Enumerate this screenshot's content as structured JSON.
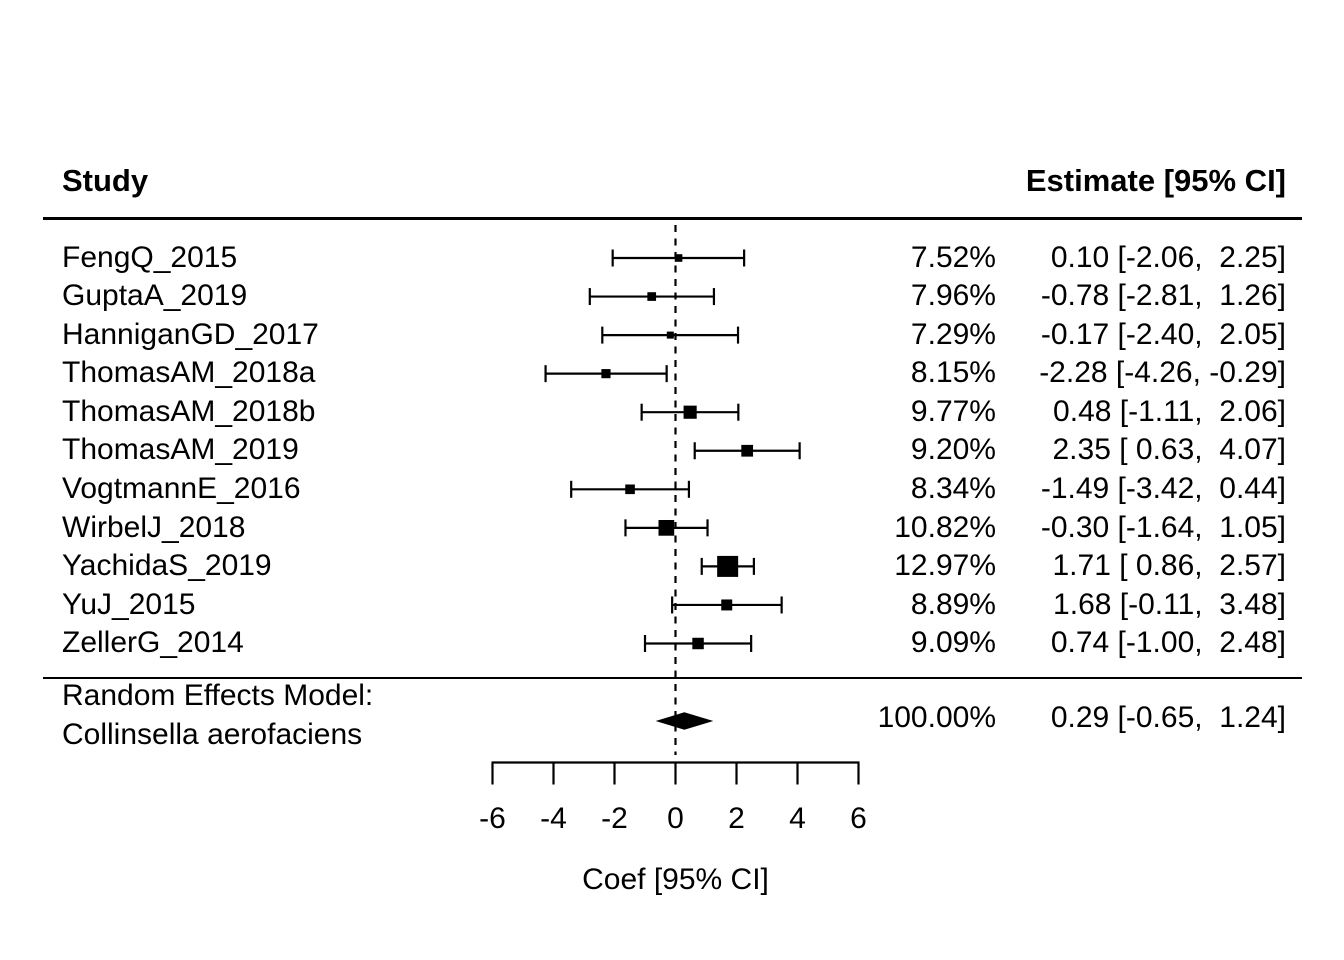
{
  "page": {
    "background": "#ffffff",
    "ink_color": "#000000"
  },
  "header": {
    "study_label": "Study",
    "estimate_label": "Estimate [95% CI]"
  },
  "summary_block": {
    "line1": "Random Effects Model:",
    "line2": "Collinsella aerofaciens",
    "weight_text": "100.00%",
    "estimate_text": "0.29 [-0.65,  1.24]"
  },
  "chart_data": {
    "type": "forest",
    "title": "",
    "x_axis": {
      "label": "Coef [95% CI]",
      "ticks": [
        -6,
        -4,
        -2,
        0,
        2,
        4,
        6
      ],
      "range": [
        -6,
        6
      ]
    },
    "zero_reference_line": 0,
    "studies": [
      {
        "label": "FengQ_2015",
        "weight_pct": 7.52,
        "weight_text": "7.52%",
        "estimate": 0.1,
        "ci_lower": -2.06,
        "ci_upper": 2.25,
        "estimate_text": "0.10 [-2.06,  2.25]"
      },
      {
        "label": "GuptaA_2019",
        "weight_pct": 7.96,
        "weight_text": "7.96%",
        "estimate": -0.78,
        "ci_lower": -2.81,
        "ci_upper": 1.26,
        "estimate_text": "-0.78 [-2.81,  1.26]"
      },
      {
        "label": "HanniganGD_2017",
        "weight_pct": 7.29,
        "weight_text": "7.29%",
        "estimate": -0.17,
        "ci_lower": -2.4,
        "ci_upper": 2.05,
        "estimate_text": "-0.17 [-2.40,  2.05]"
      },
      {
        "label": "ThomasAM_2018a",
        "weight_pct": 8.15,
        "weight_text": "8.15%",
        "estimate": -2.28,
        "ci_lower": -4.26,
        "ci_upper": -0.29,
        "estimate_text": "-2.28 [-4.26, -0.29]"
      },
      {
        "label": "ThomasAM_2018b",
        "weight_pct": 9.77,
        "weight_text": "9.77%",
        "estimate": 0.48,
        "ci_lower": -1.11,
        "ci_upper": 2.06,
        "estimate_text": "0.48 [-1.11,  2.06]"
      },
      {
        "label": "ThomasAM_2019",
        "weight_pct": 9.2,
        "weight_text": "9.20%",
        "estimate": 2.35,
        "ci_lower": 0.63,
        "ci_upper": 4.07,
        "estimate_text": "2.35 [ 0.63,  4.07]"
      },
      {
        "label": "VogtmannE_2016",
        "weight_pct": 8.34,
        "weight_text": "8.34%",
        "estimate": -1.49,
        "ci_lower": -3.42,
        "ci_upper": 0.44,
        "estimate_text": "-1.49 [-3.42,  0.44]"
      },
      {
        "label": "WirbelJ_2018",
        "weight_pct": 10.82,
        "weight_text": "10.82%",
        "estimate": -0.3,
        "ci_lower": -1.64,
        "ci_upper": 1.05,
        "estimate_text": "-0.30 [-1.64,  1.05]"
      },
      {
        "label": "YachidaS_2019",
        "weight_pct": 12.97,
        "weight_text": "12.97%",
        "estimate": 1.71,
        "ci_lower": 0.86,
        "ci_upper": 2.57,
        "estimate_text": "1.71 [ 0.86,  2.57]"
      },
      {
        "label": "YuJ_2015",
        "weight_pct": 8.89,
        "weight_text": "8.89%",
        "estimate": 1.68,
        "ci_lower": -0.11,
        "ci_upper": 3.48,
        "estimate_text": "1.68 [-0.11,  3.48]"
      },
      {
        "label": "ZellerG_2014",
        "weight_pct": 9.09,
        "weight_text": "9.09%",
        "estimate": 0.74,
        "ci_lower": -1.0,
        "ci_upper": 2.48,
        "estimate_text": "0.74 [-1.00,  2.48]"
      }
    ],
    "summary": {
      "model": "Random Effects Model:",
      "taxon": "Collinsella aerofaciens",
      "weight_pct": 100.0,
      "weight_text": "100.00%",
      "estimate": 0.29,
      "ci_lower": -0.65,
      "ci_upper": 1.24,
      "estimate_text": "0.29 [-0.65,  1.24]"
    }
  }
}
